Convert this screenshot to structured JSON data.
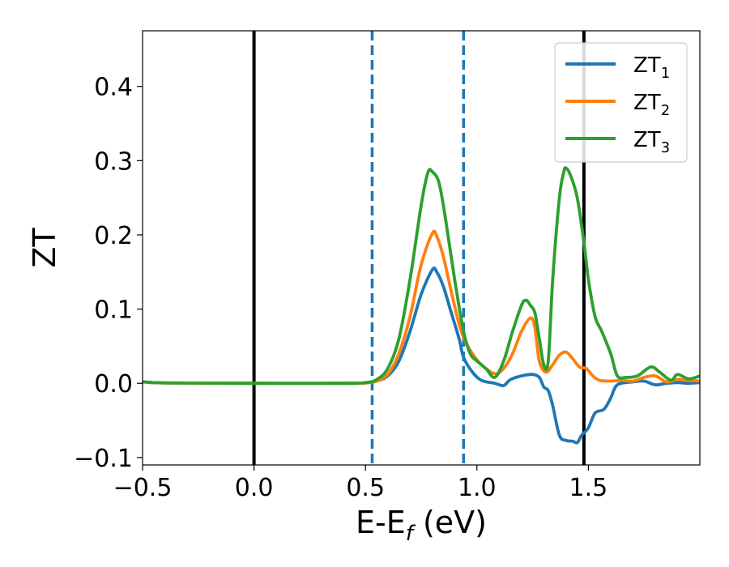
{
  "chart_data": {
    "type": "line",
    "xlabel": "E-E",
    "xlabel_sub": "f",
    "xlabel_unit": " (eV)",
    "ylabel": "ZT",
    "xlim": [
      -0.5,
      2.0
    ],
    "ylim": [
      -0.11,
      0.475
    ],
    "x_ticks": [
      -0.5,
      0.0,
      0.5,
      1.0,
      1.5
    ],
    "x_tick_labels": [
      "−0.5",
      "0.0",
      "0.5",
      "1.0",
      "1.5"
    ],
    "y_ticks": [
      -0.1,
      0.0,
      0.1,
      0.2,
      0.3,
      0.4
    ],
    "y_tick_labels": [
      "−0.1",
      "0.0",
      "0.1",
      "0.2",
      "0.3",
      "0.4"
    ],
    "grid": false,
    "legend_position": "top-right",
    "vertical_lines": [
      {
        "x": 0.0,
        "style": "solid",
        "color": "#000000"
      },
      {
        "x": 1.48,
        "style": "solid",
        "color": "#000000"
      },
      {
        "x": 0.53,
        "style": "dashed",
        "color": "#1f77b4"
      },
      {
        "x": 0.94,
        "style": "dashed",
        "color": "#1f77b4"
      }
    ],
    "series": [
      {
        "name": "ZT",
        "name_sub": "1",
        "color": "#1f77b4",
        "points": [
          [
            -0.5,
            0.002
          ],
          [
            -0.4,
            0.0005
          ],
          [
            0.0,
            0.0
          ],
          [
            0.4,
            0.0
          ],
          [
            0.5,
            0.0005
          ],
          [
            0.55,
            0.003
          ],
          [
            0.6,
            0.01
          ],
          [
            0.65,
            0.03
          ],
          [
            0.7,
            0.07
          ],
          [
            0.75,
            0.12
          ],
          [
            0.8,
            0.153
          ],
          [
            0.82,
            0.15
          ],
          [
            0.85,
            0.13
          ],
          [
            0.88,
            0.1
          ],
          [
            0.92,
            0.06
          ],
          [
            0.94,
            0.035
          ],
          [
            0.98,
            0.015
          ],
          [
            1.02,
            0.004
          ],
          [
            1.08,
            0.0
          ],
          [
            1.12,
            -0.003
          ],
          [
            1.15,
            0.005
          ],
          [
            1.2,
            0.01
          ],
          [
            1.25,
            0.012
          ],
          [
            1.28,
            0.008
          ],
          [
            1.3,
            -0.005
          ],
          [
            1.32,
            -0.01
          ],
          [
            1.34,
            -0.03
          ],
          [
            1.37,
            -0.07
          ],
          [
            1.4,
            -0.077
          ],
          [
            1.43,
            -0.078
          ],
          [
            1.45,
            -0.08
          ],
          [
            1.47,
            -0.07
          ],
          [
            1.5,
            -0.06
          ],
          [
            1.53,
            -0.04
          ],
          [
            1.57,
            -0.035
          ],
          [
            1.6,
            -0.02
          ],
          [
            1.63,
            -0.002
          ],
          [
            1.7,
            0.002
          ],
          [
            1.75,
            0.003
          ],
          [
            1.8,
            -0.002
          ],
          [
            1.85,
            0.0
          ],
          [
            1.9,
            0.001
          ],
          [
            1.95,
            0.0
          ],
          [
            2.0,
            0.001
          ]
        ]
      },
      {
        "name": "ZT",
        "name_sub": "2",
        "color": "#ff7f0e",
        "points": [
          [
            -0.5,
            0.002
          ],
          [
            -0.4,
            0.0005
          ],
          [
            0.0,
            0.0
          ],
          [
            0.4,
            0.0
          ],
          [
            0.5,
            0.0005
          ],
          [
            0.55,
            0.003
          ],
          [
            0.6,
            0.012
          ],
          [
            0.65,
            0.04
          ],
          [
            0.7,
            0.09
          ],
          [
            0.75,
            0.16
          ],
          [
            0.8,
            0.202
          ],
          [
            0.82,
            0.198
          ],
          [
            0.85,
            0.17
          ],
          [
            0.88,
            0.13
          ],
          [
            0.92,
            0.08
          ],
          [
            0.95,
            0.055
          ],
          [
            0.98,
            0.04
          ],
          [
            1.02,
            0.025
          ],
          [
            1.08,
            0.013
          ],
          [
            1.12,
            0.02
          ],
          [
            1.16,
            0.04
          ],
          [
            1.2,
            0.07
          ],
          [
            1.24,
            0.088
          ],
          [
            1.26,
            0.075
          ],
          [
            1.28,
            0.03
          ],
          [
            1.31,
            0.015
          ],
          [
            1.34,
            0.025
          ],
          [
            1.37,
            0.038
          ],
          [
            1.4,
            0.042
          ],
          [
            1.43,
            0.033
          ],
          [
            1.46,
            0.022
          ],
          [
            1.49,
            0.02
          ],
          [
            1.52,
            0.01
          ],
          [
            1.55,
            0.004
          ],
          [
            1.6,
            0.003
          ],
          [
            1.65,
            0.004
          ],
          [
            1.7,
            0.003
          ],
          [
            1.75,
            0.008
          ],
          [
            1.8,
            0.01
          ],
          [
            1.85,
            0.002
          ],
          [
            1.9,
            0.005
          ],
          [
            1.95,
            0.004
          ],
          [
            2.0,
            0.003
          ]
        ]
      },
      {
        "name": "ZT",
        "name_sub": "3",
        "color": "#2ca02c",
        "points": [
          [
            -0.5,
            0.002
          ],
          [
            -0.4,
            0.0005
          ],
          [
            0.0,
            0.0
          ],
          [
            0.4,
            0.0
          ],
          [
            0.5,
            0.001
          ],
          [
            0.55,
            0.005
          ],
          [
            0.6,
            0.02
          ],
          [
            0.65,
            0.06
          ],
          [
            0.7,
            0.14
          ],
          [
            0.75,
            0.24
          ],
          [
            0.78,
            0.284
          ],
          [
            0.8,
            0.285
          ],
          [
            0.83,
            0.27
          ],
          [
            0.86,
            0.22
          ],
          [
            0.9,
            0.14
          ],
          [
            0.94,
            0.07
          ],
          [
            0.97,
            0.04
          ],
          [
            1.0,
            0.03
          ],
          [
            1.04,
            0.02
          ],
          [
            1.08,
            0.008
          ],
          [
            1.12,
            0.03
          ],
          [
            1.16,
            0.07
          ],
          [
            1.2,
            0.105
          ],
          [
            1.22,
            0.112
          ],
          [
            1.24,
            0.105
          ],
          [
            1.26,
            0.095
          ],
          [
            1.28,
            0.06
          ],
          [
            1.3,
            0.025
          ],
          [
            1.32,
            0.03
          ],
          [
            1.34,
            0.14
          ],
          [
            1.37,
            0.25
          ],
          [
            1.39,
            0.285
          ],
          [
            1.4,
            0.29
          ],
          [
            1.42,
            0.28
          ],
          [
            1.45,
            0.25
          ],
          [
            1.48,
            0.19
          ],
          [
            1.5,
            0.14
          ],
          [
            1.53,
            0.09
          ],
          [
            1.56,
            0.07
          ],
          [
            1.6,
            0.04
          ],
          [
            1.63,
            0.01
          ],
          [
            1.67,
            0.008
          ],
          [
            1.72,
            0.01
          ],
          [
            1.78,
            0.022
          ],
          [
            1.82,
            0.015
          ],
          [
            1.87,
            0.004
          ],
          [
            1.9,
            0.012
          ],
          [
            1.95,
            0.006
          ],
          [
            2.0,
            0.01
          ]
        ]
      }
    ]
  }
}
